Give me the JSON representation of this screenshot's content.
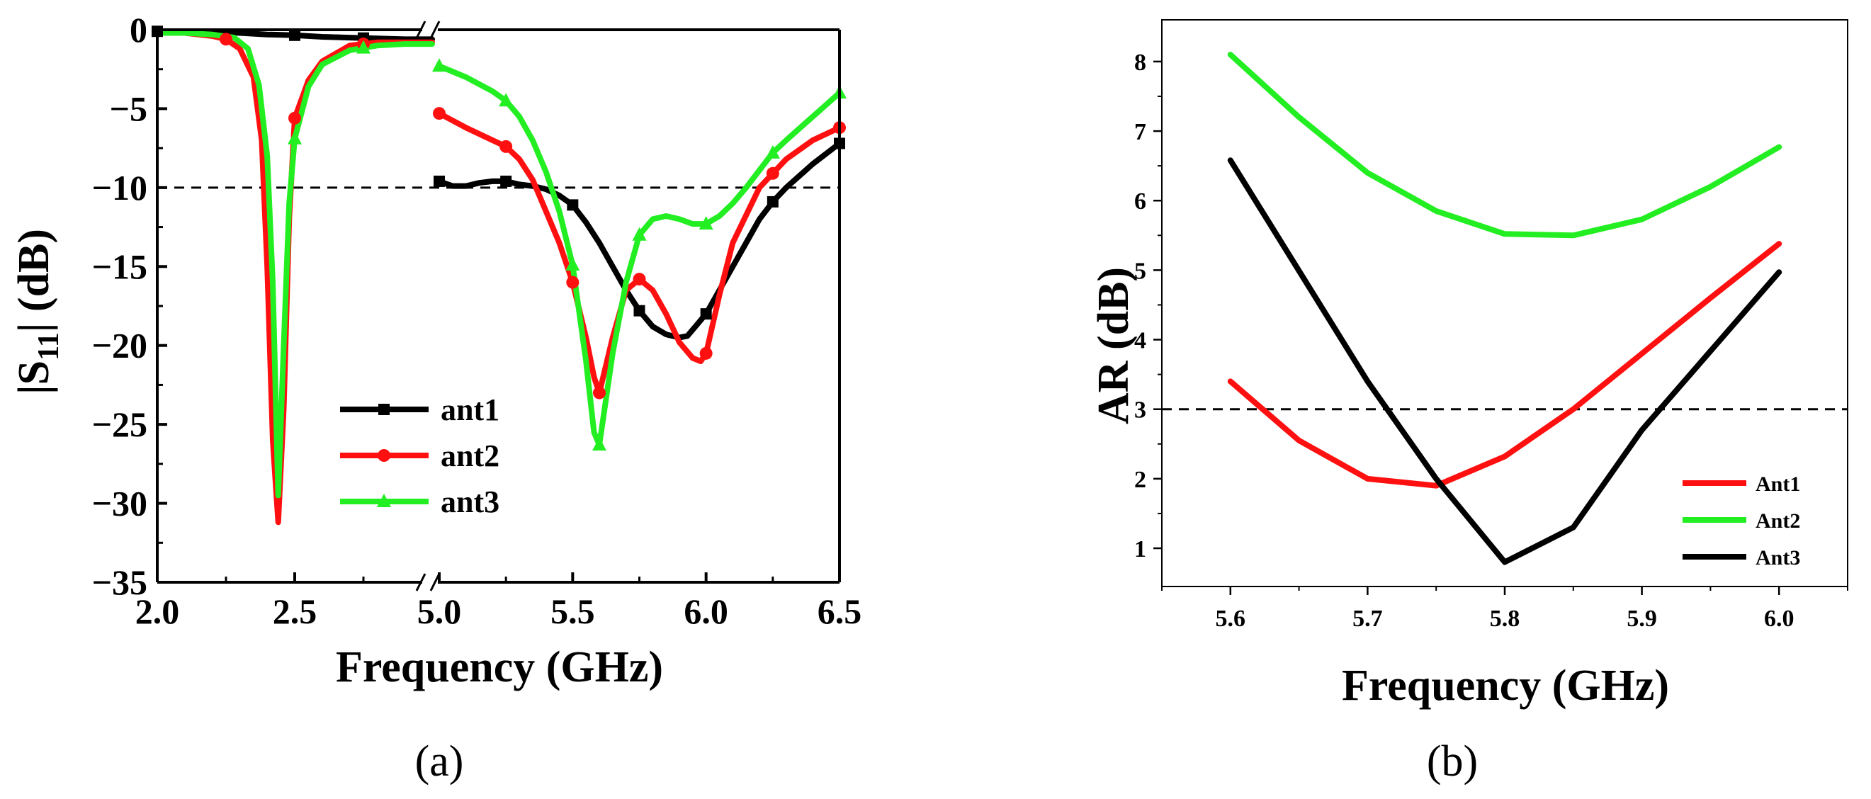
{
  "chart_data": [
    {
      "panel_label": "(a)",
      "type": "line",
      "xlabel": "Frequency (GHz)",
      "ylabel": "|S11| (dB)",
      "ylabel_main": "|S",
      "ylabel_sub": "11",
      "ylabel_rest": "| (dB)",
      "ylim": [
        -35,
        0
      ],
      "yticks": [
        0,
        -5,
        -10,
        -15,
        -20,
        -25,
        -30,
        -35
      ],
      "ytick_labels": [
        "0",
        "−5",
        "−10",
        "−15",
        "−20",
        "−25",
        "−30",
        "−35"
      ],
      "x_axis_break": true,
      "x_segments": [
        {
          "range": [
            2.0,
            3.0
          ],
          "ticks": [
            2.0,
            2.5
          ],
          "tick_labels": [
            "2.0",
            "2.5"
          ]
        },
        {
          "range": [
            5.0,
            6.5
          ],
          "ticks": [
            5.0,
            5.5,
            6.0,
            6.5
          ],
          "tick_labels": [
            "5.0",
            "5.5",
            "6.0",
            "6.5"
          ]
        }
      ],
      "reference_line": {
        "y": -10,
        "style": "dashed"
      },
      "legend": "lower-left",
      "series": [
        {
          "name": "ant1",
          "color": "#000000",
          "marker": "square",
          "x": [
            2.0,
            2.1,
            2.2,
            2.3,
            2.4,
            2.5,
            2.6,
            2.7,
            2.8,
            2.9,
            3.0,
            5.0,
            5.05,
            5.1,
            5.15,
            5.2,
            5.25,
            5.3,
            5.35,
            5.4,
            5.45,
            5.5,
            5.55,
            5.6,
            5.65,
            5.7,
            5.75,
            5.8,
            5.85,
            5.9,
            5.93,
            5.95,
            6.0,
            6.05,
            6.1,
            6.15,
            6.2,
            6.25,
            6.3,
            6.4,
            6.5
          ],
          "y": [
            -0.1,
            -0.1,
            -0.15,
            -0.2,
            -0.3,
            -0.35,
            -0.45,
            -0.5,
            -0.55,
            -0.6,
            -0.6,
            -9.6,
            -9.9,
            -9.9,
            -9.7,
            -9.6,
            -9.6,
            -9.8,
            -9.9,
            -10.1,
            -10.5,
            -11.1,
            -12.2,
            -13.5,
            -15.0,
            -16.5,
            -17.8,
            -18.8,
            -19.3,
            -19.5,
            -19.4,
            -19.0,
            -18.0,
            -16.5,
            -15.0,
            -13.5,
            -12.0,
            -10.9,
            -10.0,
            -8.5,
            -7.2
          ],
          "marker_x": [
            2.0,
            2.5,
            2.75,
            5.0,
            5.25,
            5.5,
            5.75,
            6.0,
            6.25,
            6.5
          ]
        },
        {
          "name": "ant2",
          "color": "#ff1010",
          "marker": "circle",
          "x": [
            2.0,
            2.1,
            2.2,
            2.25,
            2.3,
            2.35,
            2.38,
            2.4,
            2.42,
            2.44,
            2.46,
            2.48,
            2.5,
            2.55,
            2.6,
            2.7,
            2.8,
            2.9,
            3.0,
            5.0,
            5.1,
            5.2,
            5.25,
            5.3,
            5.35,
            5.4,
            5.45,
            5.5,
            5.55,
            5.58,
            5.6,
            5.65,
            5.7,
            5.75,
            5.8,
            5.85,
            5.9,
            5.95,
            5.98,
            6.0,
            6.05,
            6.1,
            6.2,
            6.25,
            6.3,
            6.4,
            6.5
          ],
          "y": [
            -0.2,
            -0.2,
            -0.4,
            -0.6,
            -1.2,
            -3.0,
            -7.0,
            -15.0,
            -26.0,
            -31.2,
            -24.0,
            -12.0,
            -5.6,
            -3.2,
            -2.0,
            -1.0,
            -0.8,
            -0.8,
            -0.8,
            -5.3,
            -6.2,
            -7.0,
            -7.4,
            -8.2,
            -9.5,
            -11.5,
            -13.5,
            -16.0,
            -19.5,
            -22.0,
            -23.0,
            -19.5,
            -16.5,
            -15.8,
            -16.5,
            -18.0,
            -19.8,
            -20.8,
            -21.0,
            -20.5,
            -16.8,
            -13.5,
            -10.0,
            -9.1,
            -8.2,
            -7.0,
            -6.2
          ],
          "marker_x": [
            2.25,
            2.5,
            2.75,
            5.0,
            5.25,
            5.5,
            5.6,
            5.75,
            6.0,
            6.25,
            6.5
          ]
        },
        {
          "name": "ant3",
          "color": "#22ee22",
          "marker": "triangle",
          "x": [
            2.0,
            2.1,
            2.2,
            2.28,
            2.33,
            2.37,
            2.4,
            2.42,
            2.44,
            2.46,
            2.48,
            2.5,
            2.55,
            2.6,
            2.7,
            2.8,
            2.9,
            3.0,
            5.0,
            5.1,
            5.2,
            5.25,
            5.3,
            5.35,
            5.4,
            5.45,
            5.5,
            5.55,
            5.58,
            5.6,
            5.65,
            5.7,
            5.75,
            5.8,
            5.85,
            5.9,
            5.95,
            6.0,
            6.05,
            6.1,
            6.15,
            6.2,
            6.25,
            6.3,
            6.4,
            6.5
          ],
          "y": [
            -0.2,
            -0.2,
            -0.3,
            -0.5,
            -1.2,
            -3.5,
            -8.0,
            -16.0,
            -29.5,
            -20.0,
            -11.0,
            -6.9,
            -3.6,
            -2.2,
            -1.3,
            -1.0,
            -0.9,
            -0.9,
            -2.3,
            -3.0,
            -3.9,
            -4.5,
            -5.5,
            -7.0,
            -9.0,
            -11.5,
            -14.9,
            -21.0,
            -25.5,
            -26.3,
            -20.5,
            -16.0,
            -13.0,
            -12.0,
            -11.8,
            -12.0,
            -12.3,
            -12.3,
            -11.8,
            -11.0,
            -10.0,
            -8.9,
            -7.8,
            -7.0,
            -5.5,
            -4.0
          ],
          "marker_x": [
            2.5,
            2.75,
            5.0,
            5.25,
            5.5,
            5.6,
            5.75,
            6.0,
            6.25,
            6.5
          ]
        }
      ]
    },
    {
      "panel_label": "(b)",
      "type": "line",
      "xlabel": "Frequency (GHz)",
      "ylabel": "AR (dB)",
      "xlim": [
        5.55,
        6.05
      ],
      "ylim": [
        0.45,
        8.6
      ],
      "xticks": [
        5.6,
        5.7,
        5.8,
        5.9,
        6.0
      ],
      "xtick_labels": [
        "5.6",
        "5.7",
        "5.8",
        "5.9",
        "6.0"
      ],
      "yticks": [
        1,
        2,
        3,
        4,
        5,
        6,
        7,
        8
      ],
      "ytick_labels": [
        "1",
        "2",
        "3",
        "4",
        "5",
        "6",
        "7",
        "8"
      ],
      "reference_line": {
        "y": 3,
        "style": "dashed"
      },
      "legend": "lower-right",
      "series": [
        {
          "name": "Ant1",
          "color": "#ff1010",
          "x": [
            5.6,
            5.65,
            5.7,
            5.75,
            5.8,
            5.85,
            5.9,
            5.95,
            6.0
          ],
          "y": [
            3.4,
            2.55,
            2.0,
            1.9,
            2.32,
            3.0,
            3.8,
            4.6,
            5.38
          ]
        },
        {
          "name": "Ant2",
          "color": "#22ee22",
          "x": [
            5.6,
            5.65,
            5.7,
            5.75,
            5.8,
            5.85,
            5.9,
            5.95,
            6.0
          ],
          "y": [
            8.1,
            7.2,
            6.4,
            5.85,
            5.52,
            5.5,
            5.73,
            6.2,
            6.77
          ]
        },
        {
          "name": "Ant3",
          "color": "#000000",
          "x": [
            5.6,
            5.7,
            5.75,
            5.8,
            5.85,
            5.9,
            6.0
          ],
          "y": [
            6.58,
            3.4,
            2.0,
            0.8,
            1.3,
            2.7,
            4.97
          ]
        }
      ]
    }
  ]
}
